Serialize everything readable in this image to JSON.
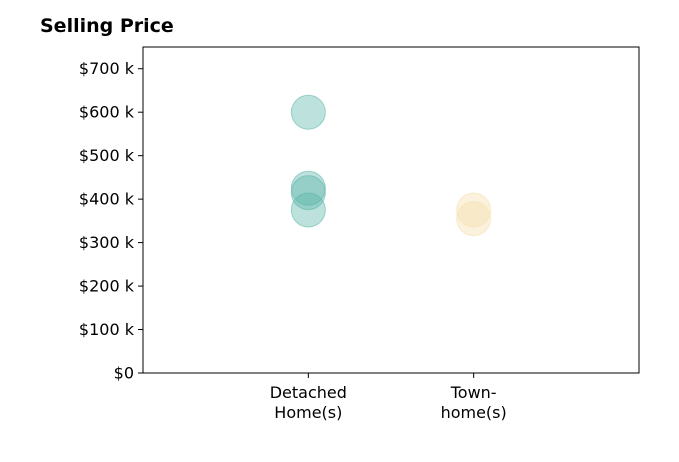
{
  "chart_data": {
    "type": "scatter",
    "title": "Selling Price",
    "xlabel": "",
    "ylabel": "",
    "categories": [
      "Detached\nHome(s)",
      "Town-\nhome(s)"
    ],
    "x_axis_range": [
      -1,
      2
    ],
    "y_ticks": [
      "$0",
      "$100 k",
      "$200 k",
      "$300 k",
      "$400 k",
      "$500 k",
      "$600 k",
      "$700 k"
    ],
    "ylim": [
      0,
      750000
    ],
    "grid": false,
    "series": [
      {
        "category_index": 0,
        "color": "#5ab4a8",
        "values": [
          600000,
          425000,
          415000,
          375000
        ]
      },
      {
        "category_index": 1,
        "color": "#f5dfaa",
        "values": [
          375000,
          355000
        ]
      }
    ]
  }
}
